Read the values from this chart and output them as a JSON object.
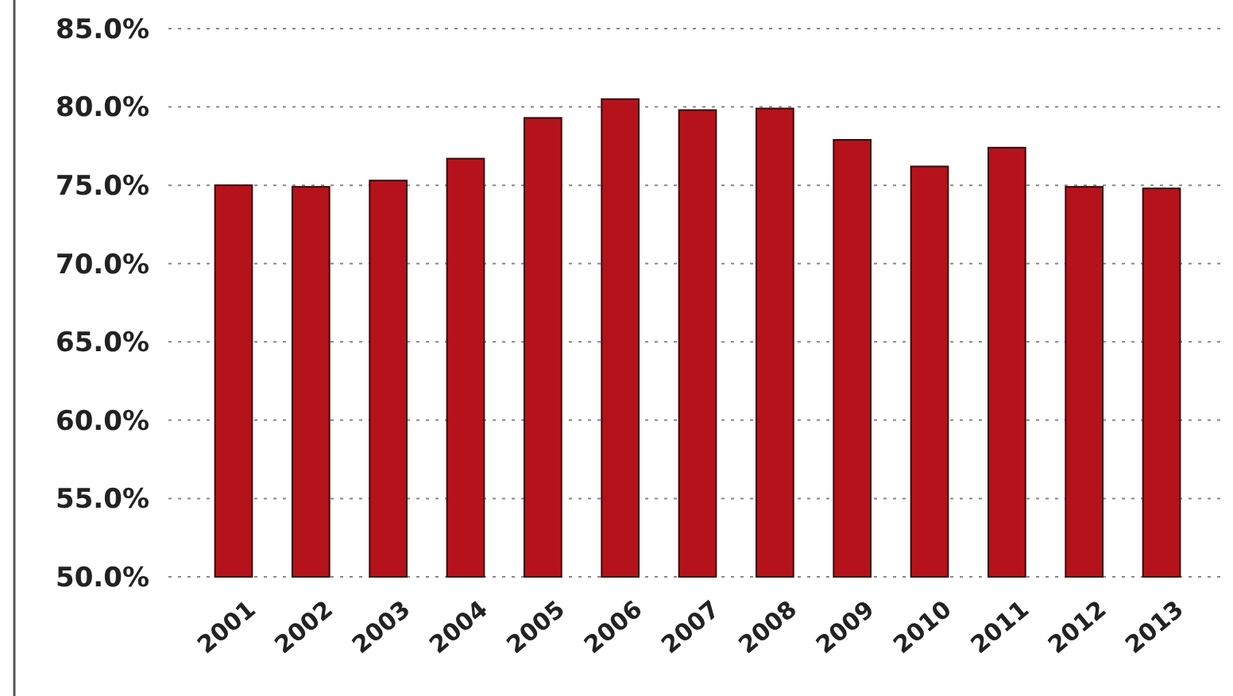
{
  "chart_data": {
    "type": "bar",
    "categories": [
      "2001",
      "2002",
      "2003",
      "2004",
      "2005",
      "2006",
      "2007",
      "2008",
      "2009",
      "2010",
      "2011",
      "2012",
      "2013"
    ],
    "values": [
      75.0,
      74.9,
      75.3,
      76.7,
      79.3,
      80.5,
      79.8,
      79.9,
      77.9,
      76.2,
      77.4,
      74.9,
      74.8
    ],
    "color": "#b5121b",
    "ylim": [
      50,
      85
    ],
    "yticks": [
      {
        "value": 50,
        "label": "50.0%"
      },
      {
        "value": 55,
        "label": "55.0%"
      },
      {
        "value": 60,
        "label": "60.0%"
      },
      {
        "value": 65,
        "label": "65.0%"
      },
      {
        "value": 70,
        "label": "70.0%"
      },
      {
        "value": 75,
        "label": "75.0%"
      },
      {
        "value": 80,
        "label": "80.0%"
      },
      {
        "value": 85,
        "label": "85.0%"
      }
    ],
    "grid": "y"
  }
}
